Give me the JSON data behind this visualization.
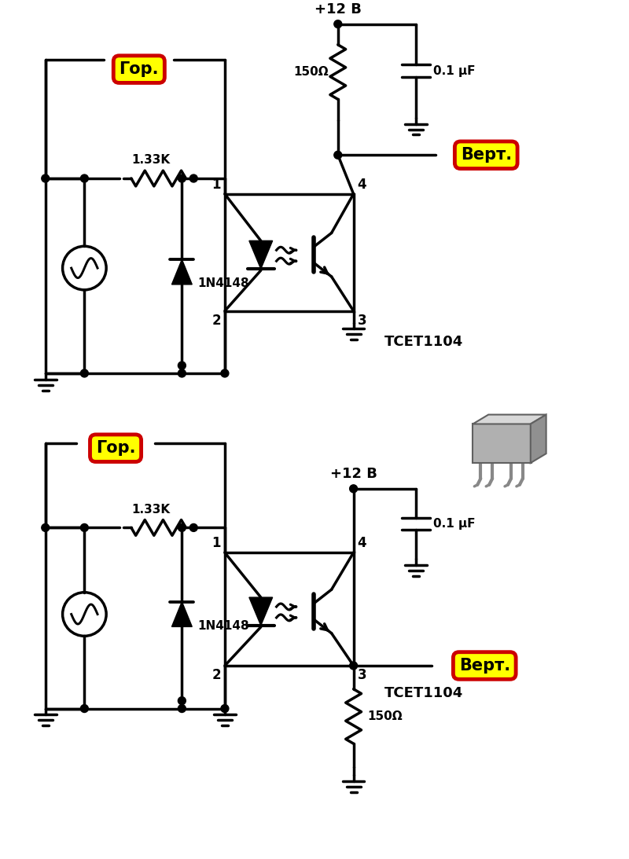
{
  "bg_color": "#ffffff",
  "line_color": "#000000",
  "line_width": 2.5,
  "red_outline": "#cc0000",
  "yellow_fill": "#ffff00",
  "label_gor": "Гор.",
  "label_vert": "Верт.",
  "label_r1": "1.33K",
  "label_r2": "150Ω",
  "label_c": "0.1 μF",
  "label_d": "1N4148",
  "label_ic": "TCET1104",
  "label_vcc": "+12 B",
  "figsize": [
    8.0,
    10.93
  ],
  "dpi": 100
}
